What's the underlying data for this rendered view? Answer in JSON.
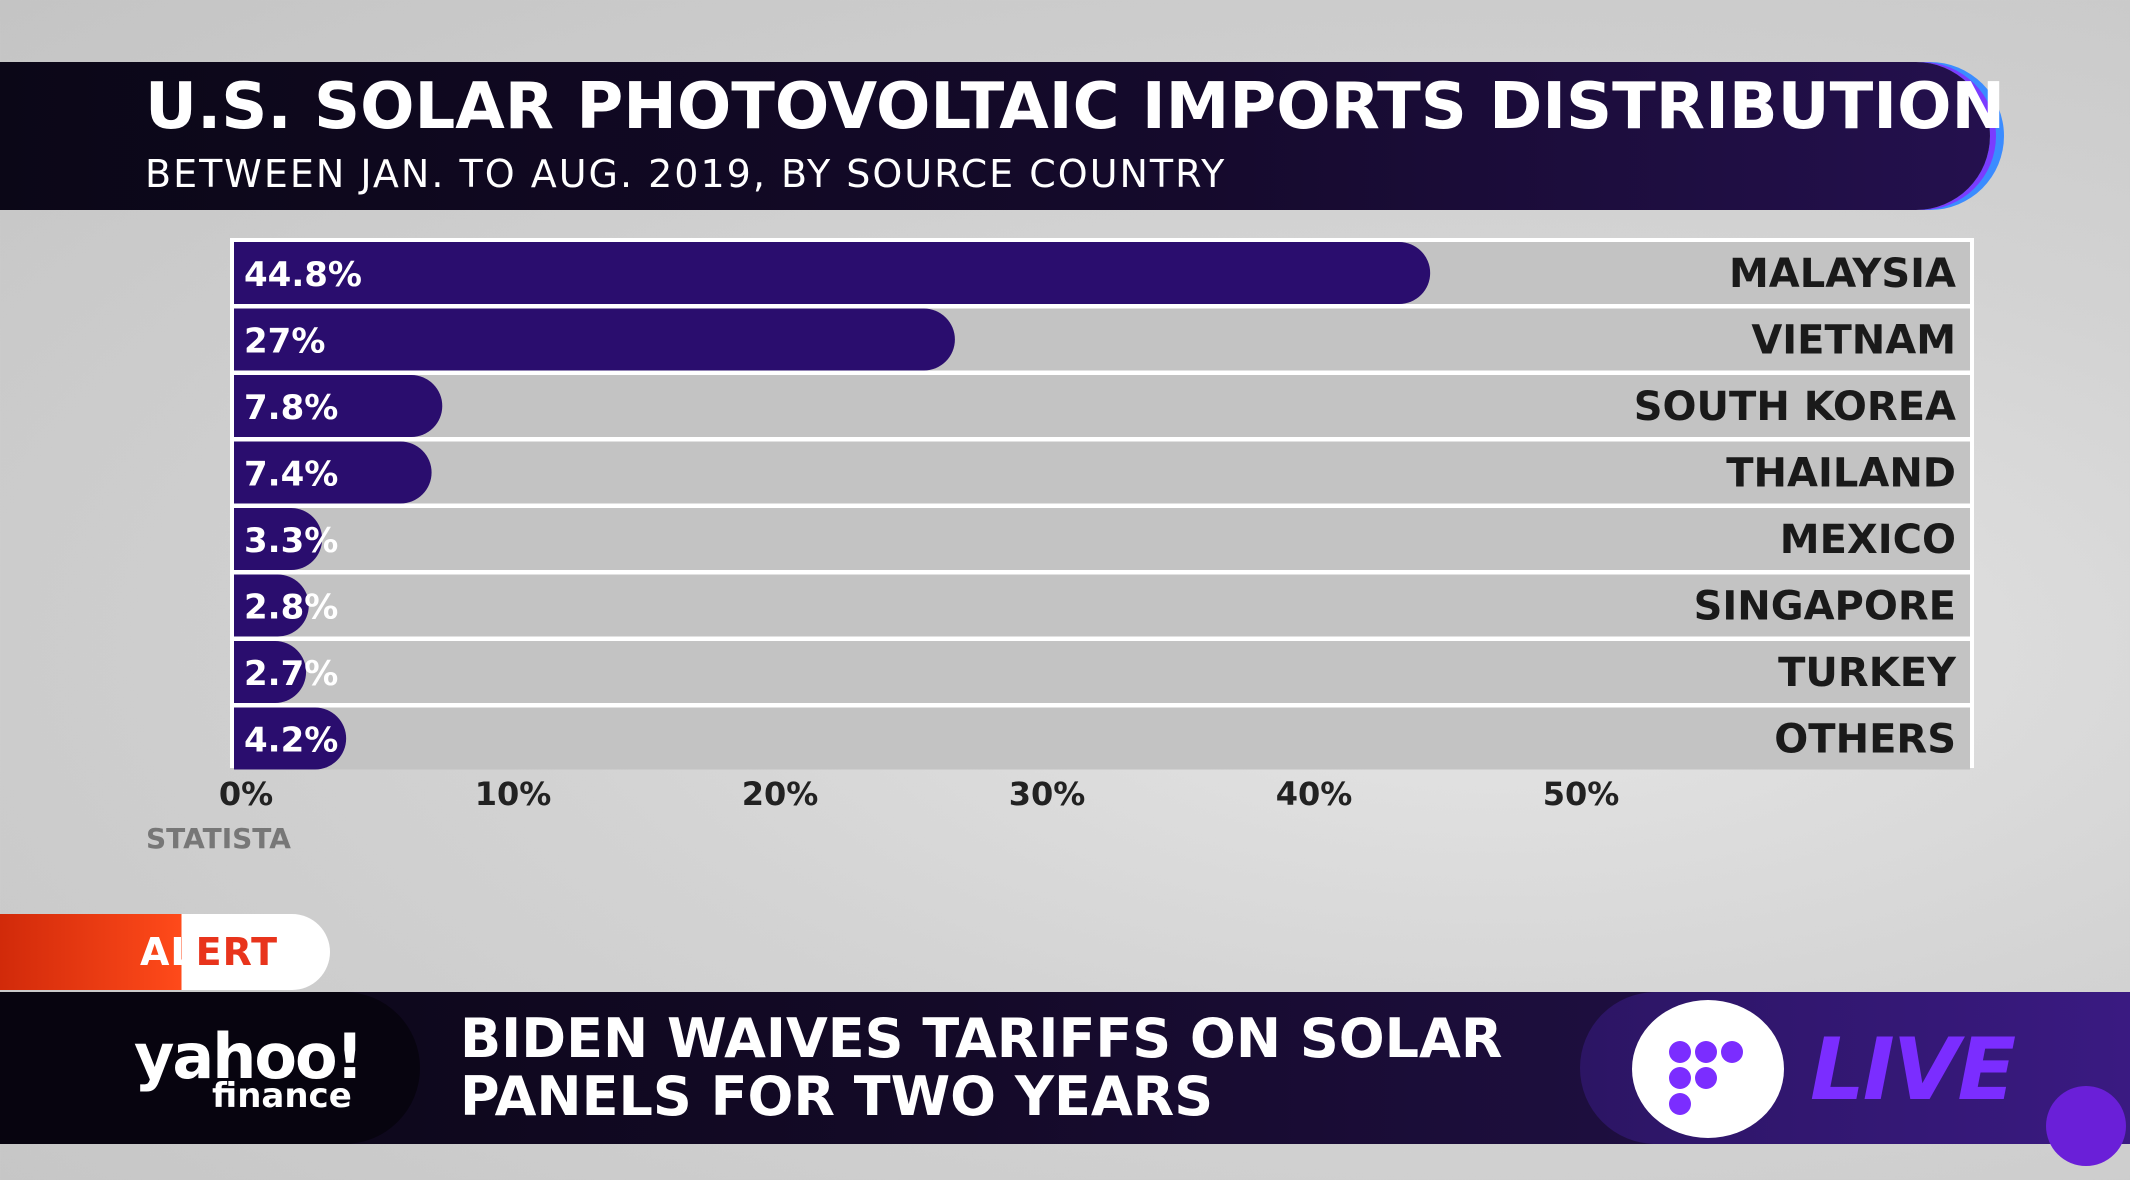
{
  "header": {
    "title": "U.S. SOLAR PHOTOVOLTAIC IMPORTS DISTRIBUTION",
    "subtitle": "BETWEEN JAN. TO AUG. 2019, BY SOURCE COUNTRY"
  },
  "chart_data": {
    "type": "bar",
    "orientation": "horizontal",
    "categories": [
      "MALAYSIA",
      "VIETNAM",
      "SOUTH KOREA",
      "THAILAND",
      "MEXICO",
      "SINGAPORE",
      "TURKEY",
      "OTHERS"
    ],
    "values": [
      44.8,
      27,
      7.8,
      7.4,
      3.3,
      2.8,
      2.7,
      4.2
    ],
    "value_labels": [
      "44.8%",
      "27%",
      "7.8%",
      "7.4%",
      "3.3%",
      "2.8%",
      "2.7%",
      "4.2%"
    ],
    "x_ticks": [
      "0%",
      "10%",
      "20%",
      "30%",
      "40%",
      "50%"
    ],
    "xlim": [
      0,
      65
    ],
    "source": "STATISTA",
    "bar_color": "#2a0d6e",
    "track_color": "#c3c3c3"
  },
  "alert": {
    "label_left": "AL",
    "label_right": "ERT"
  },
  "ticker": {
    "brand_main": "yahoo!",
    "brand_sub": "finance",
    "headline_line1": "BIDEN WAIVES TARIFFS ON SOLAR",
    "headline_line2": "PANELS FOR TWO YEARS",
    "live_label": "LIVE"
  },
  "colors": {
    "accent_purple": "#7b2dff",
    "alert_red": "#e8341c",
    "banner_dark": "#0b0717"
  }
}
